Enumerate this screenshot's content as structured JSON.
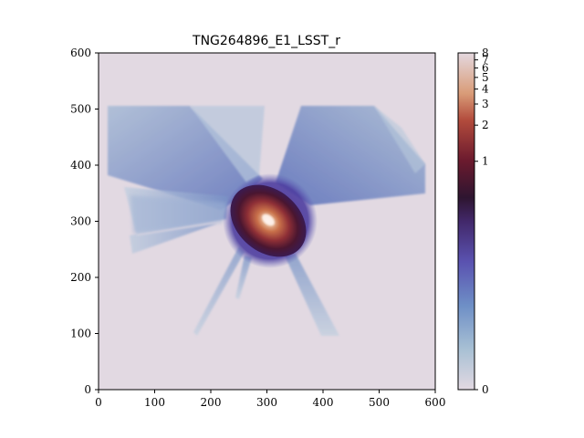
{
  "chart_data": {
    "type": "heatmap",
    "title": "TNG264896_E1_LSST_r",
    "xlabel": "",
    "ylabel": "",
    "xlim": [
      0,
      600
    ],
    "ylim": [
      0,
      600
    ],
    "x_ticks": [
      0,
      100,
      200,
      300,
      400,
      500,
      600
    ],
    "y_ticks": [
      0,
      100,
      200,
      300,
      400,
      500,
      600
    ],
    "colorbar": {
      "colormap": "twilight_shifted",
      "scale": "nonlinear (stretched)",
      "tick_labels": [
        "0",
        "1",
        "2",
        "3",
        "4",
        "5",
        "6",
        "7",
        "8"
      ],
      "tick_values": [
        0,
        1,
        2,
        3,
        4,
        5,
        6,
        7,
        8
      ]
    },
    "background_color": "#e2d9e2",
    "features": {
      "galaxy_center": [
        300,
        300
      ],
      "rays": 7
    }
  }
}
